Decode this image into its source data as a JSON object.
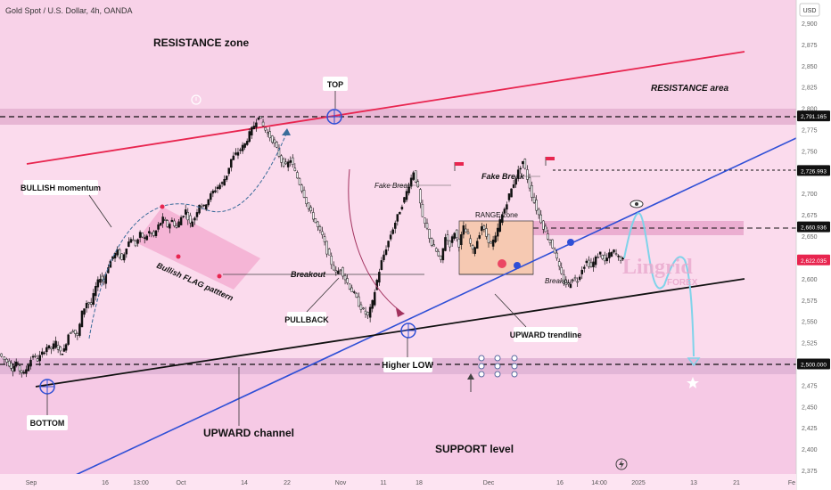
{
  "header": {
    "symbol": "Gold Spot / U.S. Dollar, 4h, OANDA",
    "currency": "USD"
  },
  "watermark": {
    "brand": "Lingrid",
    "sub": "FOREX"
  },
  "chart_data": {
    "type": "candlestick",
    "title": "Gold Spot / U.S. Dollar, 4h, OANDA",
    "currency": "USD",
    "ylim": [
      2375,
      2900
    ],
    "y_ticks": [
      2375,
      2400,
      2425,
      2450,
      2475,
      2500,
      2525,
      2550,
      2575,
      2600,
      2625,
      2650,
      2675,
      2700,
      2725,
      2750,
      2775,
      2800,
      2825,
      2850,
      2875,
      2900
    ],
    "x_ticks": [
      "Sep",
      "16",
      "13:00",
      "Oct",
      "14",
      "22",
      "Nov",
      "11",
      "18",
      "Dec",
      "16",
      "14:00",
      "2025",
      "13",
      "21",
      "Fe"
    ],
    "price_path": [
      [
        0,
        2512
      ],
      [
        5,
        2505
      ],
      [
        9,
        2500
      ],
      [
        12,
        2494
      ],
      [
        15,
        2502
      ],
      [
        18,
        2493
      ],
      [
        22,
        2488
      ],
      [
        26,
        2500
      ],
      [
        30,
        2510
      ],
      [
        34,
        2505
      ],
      [
        38,
        2512
      ],
      [
        42,
        2520
      ],
      [
        46,
        2518
      ],
      [
        50,
        2525
      ],
      [
        54,
        2513
      ],
      [
        57,
        2516
      ],
      [
        61,
        2535
      ],
      [
        65,
        2540
      ],
      [
        69,
        2532
      ],
      [
        73,
        2560
      ],
      [
        77,
        2572
      ],
      [
        81,
        2570
      ],
      [
        85,
        2590
      ],
      [
        89,
        2602
      ],
      [
        92,
        2597
      ],
      [
        96,
        2615
      ],
      [
        100,
        2626
      ],
      [
        104,
        2632
      ],
      [
        108,
        2622
      ],
      [
        112,
        2638
      ],
      [
        116,
        2648
      ],
      [
        120,
        2640
      ],
      [
        124,
        2652
      ],
      [
        128,
        2647
      ],
      [
        132,
        2655
      ],
      [
        136,
        2650
      ],
      [
        140,
        2662
      ],
      [
        144,
        2670
      ],
      [
        148,
        2662
      ],
      [
        152,
        2668
      ],
      [
        156,
        2660
      ],
      [
        160,
        2672
      ],
      [
        164,
        2680
      ],
      [
        168,
        2664
      ],
      [
        172,
        2672
      ],
      [
        176,
        2688
      ],
      [
        180,
        2684
      ],
      [
        184,
        2694
      ],
      [
        188,
        2702
      ],
      [
        192,
        2708
      ],
      [
        196,
        2712
      ],
      [
        200,
        2722
      ],
      [
        204,
        2740
      ],
      [
        208,
        2746
      ],
      [
        212,
        2752
      ],
      [
        216,
        2758
      ],
      [
        220,
        2770
      ],
      [
        224,
        2780
      ],
      [
        228,
        2792
      ],
      [
        232,
        2779
      ],
      [
        236,
        2770
      ],
      [
        240,
        2763
      ],
      [
        244,
        2752
      ],
      [
        248,
        2738
      ],
      [
        252,
        2732
      ],
      [
        256,
        2740
      ],
      [
        260,
        2725
      ],
      [
        264,
        2712
      ],
      [
        268,
        2698
      ],
      [
        272,
        2682
      ],
      [
        276,
        2672
      ],
      [
        280,
        2660
      ],
      [
        284,
        2650
      ],
      [
        288,
        2632
      ],
      [
        292,
        2618
      ],
      [
        296,
        2606
      ],
      [
        300,
        2612
      ],
      [
        304,
        2600
      ],
      [
        308,
        2590
      ],
      [
        312,
        2582
      ],
      [
        316,
        2570
      ],
      [
        320,
        2562
      ],
      [
        324,
        2556
      ],
      [
        328,
        2572
      ],
      [
        332,
        2598
      ],
      [
        336,
        2620
      ],
      [
        340,
        2636
      ],
      [
        344,
        2652
      ],
      [
        348,
        2666
      ],
      [
        352,
        2680
      ],
      [
        356,
        2694
      ],
      [
        360,
        2710
      ],
      [
        364,
        2726
      ],
      [
        368,
        2705
      ],
      [
        372,
        2670
      ],
      [
        376,
        2658
      ],
      [
        380,
        2640
      ],
      [
        384,
        2632
      ],
      [
        388,
        2620
      ],
      [
        392,
        2650
      ],
      [
        396,
        2640
      ],
      [
        400,
        2655
      ],
      [
        404,
        2640
      ],
      [
        408,
        2660
      ],
      [
        412,
        2650
      ],
      [
        416,
        2632
      ],
      [
        420,
        2645
      ],
      [
        424,
        2662
      ],
      [
        428,
        2650
      ],
      [
        432,
        2640
      ],
      [
        436,
        2648
      ],
      [
        440,
        2668
      ],
      [
        444,
        2682
      ],
      [
        448,
        2698
      ],
      [
        452,
        2712
      ],
      [
        456,
        2726
      ],
      [
        460,
        2738
      ],
      [
        464,
        2718
      ],
      [
        468,
        2698
      ],
      [
        472,
        2682
      ],
      [
        476,
        2668
      ],
      [
        480,
        2654
      ],
      [
        484,
        2643
      ],
      [
        488,
        2632
      ],
      [
        492,
        2612
      ],
      [
        496,
        2596
      ],
      [
        500,
        2592
      ],
      [
        504,
        2600
      ],
      [
        508,
        2598
      ],
      [
        512,
        2612
      ],
      [
        516,
        2620
      ],
      [
        520,
        2614
      ],
      [
        524,
        2624
      ],
      [
        528,
        2630
      ],
      [
        532,
        2620
      ],
      [
        536,
        2628
      ],
      [
        540,
        2632
      ],
      [
        544,
        2625
      ],
      [
        548,
        2622
      ]
    ],
    "levels": [
      {
        "name": "resistance",
        "price": 2791.165,
        "label": "2,791.165"
      },
      {
        "name": "fake-break-high",
        "price": 2726.993,
        "label": "2,726.993"
      },
      {
        "name": "range-top",
        "price": 2660.936,
        "label": "2,660.936"
      },
      {
        "name": "current",
        "price": 2622.035,
        "label": "2,622.035"
      },
      {
        "name": "support",
        "price": 2500.0,
        "label": "2,500.000"
      }
    ]
  },
  "annotations": {
    "resistance_zone": "RESISTANCE zone",
    "resistance_area": "RESISTANCE area",
    "top": "TOP",
    "bottom": "BOTTOM",
    "bullish_momentum": "BULLISH momentum",
    "bullish_flag": "Bullish FLAG patttern",
    "breakout1": "Breakout",
    "breakout2": "Breakout",
    "pullback": "PULLBACK",
    "fake_break1": "Fake Break",
    "fake_break2": "Fake Break",
    "range_zone": "RANGE zone",
    "upward_trendline": "UPWARD trendline",
    "higher_low": "Higher LOW",
    "upward_channel": "UPWARD channel",
    "support_level": "SUPPORT level"
  },
  "colors": {
    "background": "#fde4f2",
    "resistance_line": "#e8254f",
    "trendline": "#2f4fd6",
    "channel_line": "#111111",
    "candle_up": "#111111",
    "candle_dn": "#ffffff",
    "forecast": "#7fd3ea",
    "price_badge": "#e8254f"
  }
}
